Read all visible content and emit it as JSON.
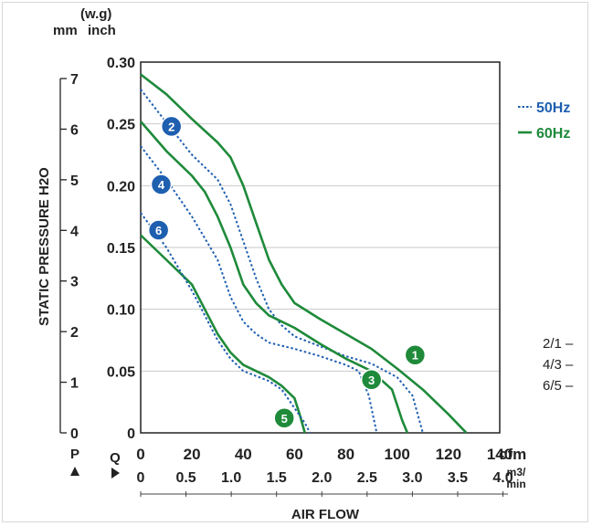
{
  "chart_data": {
    "type": "line",
    "ylabel": "STATIC PRESSURE H2O",
    "xlabel": "AIR FLOW",
    "y_units": {
      "inner": "inch",
      "outer": "mm",
      "header": "(w.g)"
    },
    "x_units": {
      "primary": "cfm",
      "secondary": "m3/ min",
      "primary_letter": "Q",
      "pressure_letter": "P"
    },
    "y_inch_ticks": [
      "0",
      "0.05",
      "0.10",
      "0.15",
      "0.20",
      "0.25",
      "0.30"
    ],
    "y_mm_ticks": [
      "0",
      "1",
      "2",
      "3",
      "4",
      "5",
      "6",
      "7"
    ],
    "x_cfm_ticks": [
      "0",
      "20",
      "40",
      "60",
      "80",
      "100",
      "120",
      "140"
    ],
    "x_m3_ticks": [
      "0",
      "0.5",
      "1.0",
      "1.5",
      "2.0",
      "2.5",
      "3.0",
      "3.5",
      "4.0"
    ],
    "xlim": [
      0,
      140
    ],
    "ylim": [
      0,
      0.3
    ],
    "grid": true,
    "legend": {
      "placement": "right",
      "entries": [
        {
          "label": "50Hz",
          "style": "dotted",
          "color": "#1f5fb0"
        },
        {
          "label": "60Hz",
          "style": "solid",
          "color": "#1e8a3a"
        }
      ]
    },
    "series": [
      {
        "marker": "1",
        "hz": "60Hz",
        "color": "#1e8a3a",
        "points": [
          [
            0,
            0.29
          ],
          [
            10,
            0.274
          ],
          [
            20,
            0.254
          ],
          [
            30,
            0.235
          ],
          [
            35,
            0.223
          ],
          [
            40,
            0.2
          ],
          [
            45,
            0.17
          ],
          [
            50,
            0.14
          ],
          [
            55,
            0.12
          ],
          [
            60,
            0.105
          ],
          [
            70,
            0.092
          ],
          [
            80,
            0.08
          ],
          [
            90,
            0.068
          ],
          [
            100,
            0.052
          ],
          [
            110,
            0.035
          ],
          [
            120,
            0.015
          ],
          [
            127,
            0.0
          ]
        ]
      },
      {
        "marker": "2",
        "hz": "50Hz",
        "color": "#1f5fb0",
        "points": [
          [
            0,
            0.278
          ],
          [
            10,
            0.251
          ],
          [
            20,
            0.225
          ],
          [
            30,
            0.205
          ],
          [
            35,
            0.185
          ],
          [
            40,
            0.155
          ],
          [
            45,
            0.125
          ],
          [
            50,
            0.1
          ],
          [
            55,
            0.087
          ],
          [
            60,
            0.078
          ],
          [
            70,
            0.07
          ],
          [
            80,
            0.062
          ],
          [
            90,
            0.056
          ],
          [
            100,
            0.045
          ],
          [
            106,
            0.03
          ],
          [
            110,
            0.0
          ]
        ]
      },
      {
        "marker": "3",
        "hz": "60Hz",
        "color": "#1e8a3a",
        "points": [
          [
            0,
            0.252
          ],
          [
            10,
            0.228
          ],
          [
            20,
            0.208
          ],
          [
            25,
            0.195
          ],
          [
            30,
            0.175
          ],
          [
            35,
            0.15
          ],
          [
            40,
            0.12
          ],
          [
            45,
            0.105
          ],
          [
            50,
            0.095
          ],
          [
            55,
            0.09
          ],
          [
            60,
            0.085
          ],
          [
            70,
            0.072
          ],
          [
            80,
            0.06
          ],
          [
            90,
            0.05
          ],
          [
            98,
            0.035
          ],
          [
            102,
            0.01
          ],
          [
            104,
            0.0
          ]
        ]
      },
      {
        "marker": "4",
        "hz": "50Hz",
        "color": "#1f5fb0",
        "points": [
          [
            0,
            0.232
          ],
          [
            10,
            0.205
          ],
          [
            20,
            0.175
          ],
          [
            30,
            0.14
          ],
          [
            35,
            0.11
          ],
          [
            40,
            0.09
          ],
          [
            45,
            0.08
          ],
          [
            50,
            0.073
          ],
          [
            60,
            0.068
          ],
          [
            70,
            0.062
          ],
          [
            80,
            0.055
          ],
          [
            85,
            0.05
          ],
          [
            89,
            0.03
          ],
          [
            92,
            0.0
          ]
        ]
      },
      {
        "marker": "5",
        "hz": "60Hz",
        "color": "#1e8a3a",
        "points": [
          [
            0,
            0.16
          ],
          [
            10,
            0.14
          ],
          [
            20,
            0.12
          ],
          [
            25,
            0.1
          ],
          [
            30,
            0.08
          ],
          [
            35,
            0.065
          ],
          [
            40,
            0.055
          ],
          [
            50,
            0.045
          ],
          [
            55,
            0.038
          ],
          [
            60,
            0.028
          ],
          [
            62,
            0.015
          ],
          [
            64,
            0.0
          ]
        ]
      },
      {
        "marker": "6",
        "hz": "50Hz",
        "color": "#1f5fb0",
        "points": [
          [
            0,
            0.178
          ],
          [
            10,
            0.15
          ],
          [
            20,
            0.115
          ],
          [
            25,
            0.095
          ],
          [
            30,
            0.075
          ],
          [
            35,
            0.06
          ],
          [
            40,
            0.05
          ],
          [
            50,
            0.042
          ],
          [
            55,
            0.035
          ],
          [
            60,
            0.02
          ],
          [
            64,
            0.008
          ],
          [
            66,
            0.0
          ]
        ]
      }
    ],
    "marker_positions": [
      {
        "label": "1",
        "color": "#1e8a3a",
        "x": 107,
        "y": 0.063
      },
      {
        "label": "2",
        "color": "#1f5fb0",
        "x": 12,
        "y": 0.248
      },
      {
        "label": "3",
        "color": "#1e8a3a",
        "x": 90,
        "y": 0.043
      },
      {
        "label": "4",
        "color": "#1f5fb0",
        "x": 8,
        "y": 0.201
      },
      {
        "label": "5",
        "color": "#1e8a3a",
        "x": 56,
        "y": 0.012
      },
      {
        "label": "6",
        "color": "#1f5fb0",
        "x": 7,
        "y": 0.164
      }
    ]
  },
  "ratios": [
    "2/1 –",
    "4/3 –",
    "6/5 –"
  ]
}
